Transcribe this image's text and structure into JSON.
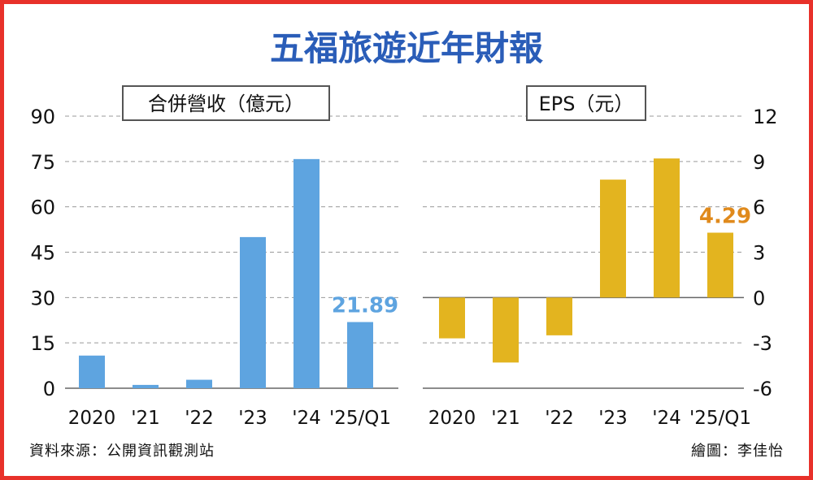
{
  "title": "五福旅遊近年財報",
  "source": "資料來源：公開資訊觀測站",
  "credit": "繪圖：李佳怡",
  "colors": {
    "title": "#2a5db8",
    "revenue": "#5ea4e0",
    "eps": "#e3b41f",
    "grid": "#9a9a9a"
  },
  "chart_data": [
    {
      "type": "bar",
      "title": "合併營收（億元）",
      "categories": [
        "2020",
        "'21",
        "'22",
        "'23",
        "'24",
        "'25/Q1"
      ],
      "values": [
        10.8,
        1.1,
        2.8,
        50.0,
        75.8,
        21.89
      ],
      "ylim": [
        0,
        90
      ],
      "yticks": [
        0,
        15,
        30,
        45,
        60,
        75,
        90
      ],
      "data_labels": [
        {
          "category": "'25/Q1",
          "text": "21.89"
        }
      ],
      "axis_side": "left",
      "grid": true
    },
    {
      "type": "bar",
      "title": "EPS（元）",
      "categories": [
        "2020",
        "'21",
        "'22",
        "'23",
        "'24",
        "'25/Q1"
      ],
      "values": [
        -2.7,
        -4.3,
        -2.5,
        7.8,
        9.2,
        4.29
      ],
      "ylim": [
        -6,
        12
      ],
      "yticks": [
        -6,
        -3,
        0,
        3,
        6,
        9,
        12
      ],
      "data_labels": [
        {
          "category": "'25/Q1",
          "text": "4.29"
        }
      ],
      "axis_side": "right",
      "grid": true
    }
  ]
}
